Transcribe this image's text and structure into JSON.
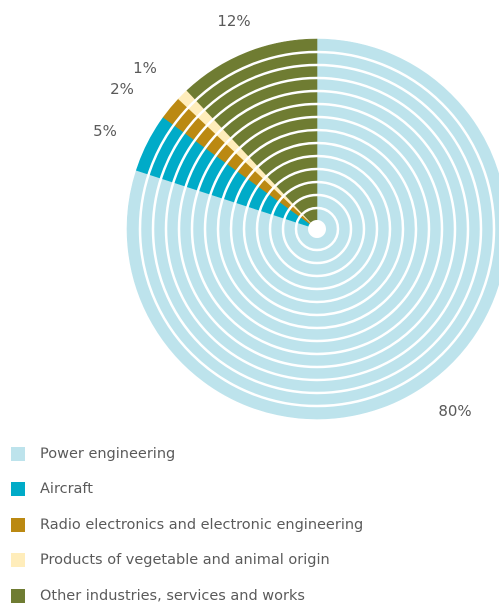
{
  "chart_data": {
    "type": "pie",
    "title": "",
    "slices": [
      {
        "name": "Power engineering",
        "value": 80,
        "label": "80%",
        "color": "#bde3ec"
      },
      {
        "name": "Aircraft",
        "value": 5,
        "label": "5%",
        "color": "#00abc8"
      },
      {
        "name": "Radio electronics and electronic engineering",
        "value": 2,
        "label": "2%",
        "color": "#bb8912"
      },
      {
        "name": "Products of vegetable and animal origin",
        "value": 1,
        "label": "1%",
        "color": "#ffedbb"
      },
      {
        "name": "Other industries, services and works",
        "value": 12,
        "label": "12%",
        "color": "#6f7c32"
      }
    ],
    "legend_position": "bottom-left",
    "start": "top",
    "direction": "clockwise",
    "concentric_ring_separators": true
  }
}
